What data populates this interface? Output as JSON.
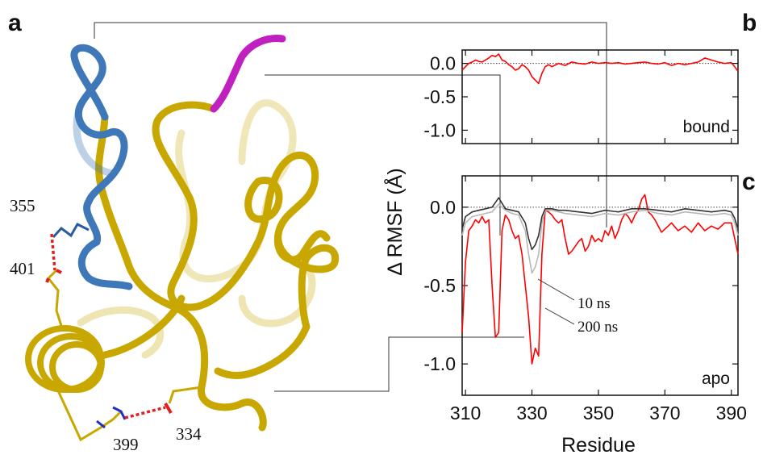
{
  "figure": {
    "panel_a": "a",
    "panel_b": "b",
    "panel_c": "c"
  },
  "structure": {
    "residue_labels": [
      "355",
      "401",
      "399",
      "334"
    ],
    "colors": {
      "helix_loop": "#c8a800",
      "blue_region": "#3e78b8",
      "magenta_region": "#c020c0",
      "salt_bridge": "#e02020"
    }
  },
  "chart_data": [
    {
      "type": "line",
      "panel": "b",
      "label": "bound",
      "ylabel": "",
      "xlabel": "",
      "xlim": [
        309,
        392
      ],
      "ylim": [
        -1.2,
        0.2
      ],
      "yticks": [
        "0.0",
        "-0.5",
        "-1.0"
      ],
      "ytick_values": [
        0.0,
        -0.5,
        -1.0
      ],
      "reference_line": 0.0,
      "series": [
        {
          "color": "#ff0000",
          "x": [
            309,
            310,
            311,
            312,
            313,
            314,
            315,
            316,
            317,
            318,
            319,
            320,
            321,
            322,
            323,
            324,
            325,
            326,
            327,
            328,
            329,
            330,
            331,
            332,
            333,
            334,
            335,
            336,
            338,
            340,
            342,
            344,
            346,
            348,
            350,
            352,
            354,
            356,
            358,
            360,
            362,
            364,
            366,
            368,
            370,
            372,
            374,
            376,
            378,
            380,
            382,
            384,
            386,
            388,
            390,
            391,
            392
          ],
          "y": [
            -0.1,
            -0.05,
            0.0,
            0.02,
            0.05,
            0.03,
            0.02,
            0.05,
            0.08,
            0.12,
            0.1,
            0.14,
            0.05,
            0.03,
            -0.02,
            -0.05,
            -0.1,
            -0.08,
            -0.02,
            -0.05,
            -0.1,
            -0.2,
            -0.25,
            -0.3,
            -0.15,
            -0.05,
            -0.02,
            -0.05,
            0.0,
            -0.03,
            0.02,
            0.0,
            -0.01,
            0.02,
            0.0,
            0.01,
            0.0,
            0.01,
            -0.01,
            0.0,
            0.01,
            0.02,
            0.0,
            -0.01,
            0.01,
            -0.03,
            0.0,
            -0.02,
            0.0,
            0.02,
            0.08,
            0.05,
            0.02,
            0.0,
            0.01,
            -0.05,
            -0.12
          ]
        }
      ]
    },
    {
      "type": "line",
      "panel": "c",
      "label": "apo",
      "ylabel": "Δ RMSF (Å)",
      "xlabel": "Residue",
      "xlim": [
        309,
        392
      ],
      "ylim": [
        -1.2,
        0.2
      ],
      "xticks": [
        "310",
        "330",
        "350",
        "370",
        "390"
      ],
      "xtick_values": [
        310,
        330,
        350,
        370,
        390
      ],
      "yticks": [
        "0.0",
        "-0.5",
        "-1.0"
      ],
      "ytick_values": [
        0.0,
        -0.5,
        -1.0
      ],
      "reference_line": 0.0,
      "annotations": [
        "10 ns",
        "200 ns"
      ],
      "series": [
        {
          "color": "#ff0000",
          "x": [
            309,
            310,
            311,
            312,
            313,
            314,
            315,
            316,
            317,
            318,
            319,
            320,
            321,
            322,
            323,
            324,
            325,
            326,
            327,
            328,
            329,
            330,
            331,
            332,
            333,
            334,
            335,
            336,
            337,
            338,
            339,
            340,
            341,
            342,
            343,
            344,
            345,
            346,
            347,
            348,
            349,
            350,
            351,
            352,
            353,
            354,
            355,
            356,
            357,
            358,
            359,
            360,
            361,
            362,
            363,
            364,
            365,
            366,
            367,
            368,
            369,
            370,
            372,
            374,
            376,
            378,
            380,
            382,
            384,
            386,
            388,
            390,
            391,
            392
          ],
          "y": [
            -0.8,
            -0.35,
            -0.15,
            -0.12,
            -0.08,
            -0.1,
            -0.06,
            -0.1,
            -0.08,
            -0.5,
            -0.83,
            -0.8,
            -0.15,
            -0.05,
            -0.08,
            -0.15,
            -0.2,
            -0.18,
            -0.3,
            -0.5,
            -0.7,
            -1.0,
            -0.9,
            -0.95,
            -0.3,
            -0.02,
            -0.03,
            -0.05,
            -0.08,
            -0.1,
            -0.08,
            -0.2,
            -0.3,
            -0.28,
            -0.25,
            -0.22,
            -0.2,
            -0.28,
            -0.25,
            -0.18,
            -0.22,
            -0.2,
            -0.22,
            -0.15,
            -0.18,
            -0.12,
            -0.2,
            -0.15,
            -0.08,
            -0.04,
            -0.06,
            -0.1,
            -0.05,
            -0.02,
            0.05,
            0.08,
            -0.03,
            -0.05,
            -0.08,
            -0.12,
            -0.16,
            -0.14,
            -0.1,
            -0.15,
            -0.12,
            -0.16,
            -0.1,
            -0.15,
            -0.12,
            -0.14,
            -0.1,
            -0.1,
            -0.2,
            -0.3
          ]
        },
        {
          "color": "#b8b8b8",
          "x": [
            309,
            310,
            312,
            314,
            316,
            318,
            320,
            322,
            324,
            326,
            328,
            329,
            330,
            331,
            332,
            333,
            334,
            336,
            338,
            340,
            344,
            348,
            352,
            356,
            360,
            364,
            368,
            372,
            376,
            380,
            384,
            388,
            390,
            391,
            392
          ],
          "y": [
            -0.18,
            -0.1,
            -0.06,
            -0.05,
            -0.04,
            -0.03,
            0.02,
            -0.02,
            -0.04,
            -0.05,
            -0.15,
            -0.3,
            -0.42,
            -0.38,
            -0.3,
            -0.1,
            -0.02,
            -0.02,
            -0.03,
            -0.04,
            -0.05,
            -0.06,
            -0.04,
            -0.05,
            -0.03,
            -0.02,
            -0.04,
            -0.05,
            -0.03,
            -0.04,
            -0.05,
            -0.04,
            -0.05,
            -0.1,
            -0.18
          ]
        },
        {
          "color": "#333333",
          "x": [
            309,
            310,
            312,
            314,
            316,
            318,
            320,
            322,
            324,
            326,
            328,
            329,
            330,
            331,
            332,
            333,
            334,
            336,
            338,
            340,
            344,
            348,
            352,
            356,
            360,
            364,
            368,
            372,
            376,
            380,
            384,
            388,
            390,
            391,
            392
          ],
          "y": [
            -0.14,
            -0.06,
            -0.03,
            -0.02,
            -0.01,
            0.0,
            0.06,
            -0.01,
            -0.02,
            -0.03,
            -0.1,
            -0.2,
            -0.27,
            -0.24,
            -0.18,
            -0.06,
            -0.01,
            -0.01,
            -0.02,
            -0.02,
            -0.03,
            -0.04,
            -0.02,
            -0.03,
            -0.01,
            -0.01,
            -0.02,
            -0.03,
            -0.01,
            -0.02,
            -0.03,
            -0.02,
            -0.03,
            -0.07,
            -0.14
          ]
        }
      ]
    }
  ]
}
